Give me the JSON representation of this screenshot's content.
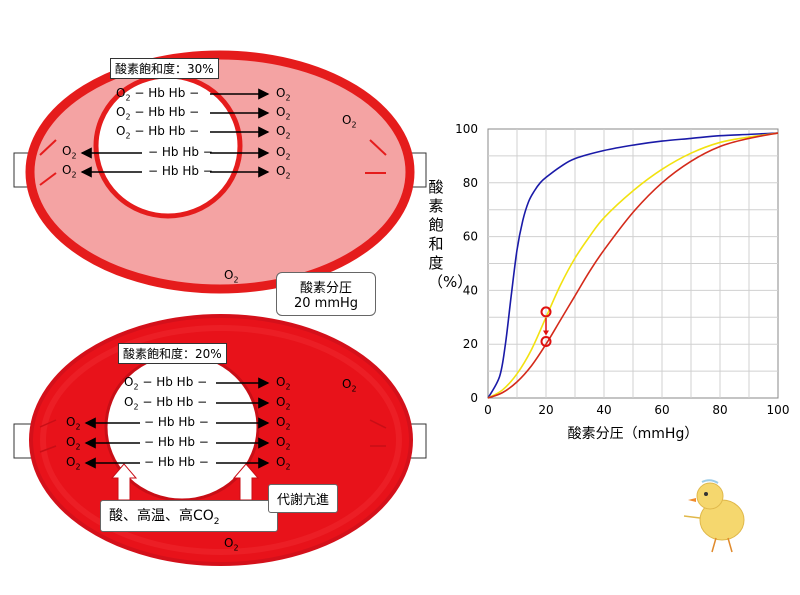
{
  "top_cell": {
    "saturation_label": "酸素飽和度：30%",
    "rows": [
      {
        "left": "O",
        "sub": "2",
        "text": " − Hb Hb −",
        "right": "O",
        "rsub": "2"
      },
      {
        "left": "O",
        "sub": "2",
        "text": " − Hb Hb −",
        "right": "O",
        "rsub": "2"
      },
      {
        "left": "O",
        "sub": "2",
        "text": " − Hb Hb −",
        "right": "O",
        "rsub": "2"
      },
      {
        "left": "",
        "sub": "",
        "text": "− Hb Hb −",
        "right": "O",
        "rsub": "2"
      },
      {
        "left": "",
        "sub": "",
        "text": "− Hb Hb −",
        "right": "O",
        "rsub": "2"
      }
    ],
    "side_o2_left": [
      "O",
      "O"
    ],
    "free_o2": [
      "O",
      "O"
    ]
  },
  "pressure_callout": {
    "line1": "酸素分圧",
    "line2": "20 mmHg"
  },
  "bottom_cell": {
    "saturation_label": "酸素飽和度：20%",
    "rows": [
      {
        "left": "O",
        "sub": "2",
        "text": " − Hb Hb −",
        "right": "O",
        "rsub": "2"
      },
      {
        "left": "O",
        "sub": "2",
        "text": " − Hb Hb −",
        "right": "O",
        "rsub": "2"
      },
      {
        "left": "",
        "sub": "",
        "text": "− Hb Hb −",
        "right": "O",
        "rsub": "2"
      },
      {
        "left": "",
        "sub": "",
        "text": "− Hb Hb −",
        "right": "O",
        "rsub": "2"
      },
      {
        "left": "",
        "sub": "",
        "text": "− Hb Hb −",
        "right": "O",
        "rsub": "2"
      }
    ],
    "cause_label": "酸、高温、高CO",
    "cause_sub": "2",
    "metabolism_label": "代謝亢進"
  },
  "o2_symbol": "O",
  "o2_sub": "2",
  "chart_data": {
    "type": "line",
    "xlabel": "酸素分圧（mmHg）",
    "ylabel": "酸素飽和度（%）",
    "xlim": [
      0,
      100
    ],
    "ylim": [
      0,
      100
    ],
    "x_ticks": [
      "0",
      "20",
      "40",
      "60",
      "80",
      "100"
    ],
    "y_ticks": [
      "0",
      "20",
      "40",
      "60",
      "80",
      "100"
    ],
    "grid": true,
    "series": [
      {
        "color": "#1a1aa8",
        "x": [
          0,
          4,
          6,
          8,
          10,
          12,
          14,
          16,
          18,
          20,
          25,
          30,
          40,
          50,
          60,
          70,
          80,
          90,
          100
        ],
        "y": [
          0,
          8,
          20,
          38,
          55,
          66,
          73,
          77,
          80,
          82,
          86,
          89,
          92,
          94,
          95.5,
          96.5,
          97.5,
          98,
          98.5
        ]
      },
      {
        "color": "#f2e210",
        "x": [
          0,
          5,
          10,
          15,
          20,
          25,
          30,
          35,
          40,
          50,
          60,
          70,
          80,
          90,
          100
        ],
        "y": [
          0,
          3,
          9,
          18,
          30,
          42,
          52,
          60,
          67,
          77,
          85,
          91,
          95,
          97,
          98.5
        ]
      },
      {
        "color": "#d42a1a",
        "x": [
          0,
          5,
          10,
          15,
          20,
          25,
          30,
          35,
          40,
          50,
          60,
          70,
          80,
          90,
          100
        ],
        "y": [
          0,
          2,
          6,
          12,
          20,
          29,
          38,
          47,
          55,
          69,
          80,
          88,
          93.5,
          96.5,
          98.5
        ]
      }
    ],
    "markers": [
      {
        "x": 20,
        "y": 32
      },
      {
        "x": 20,
        "y": 21
      }
    ]
  }
}
